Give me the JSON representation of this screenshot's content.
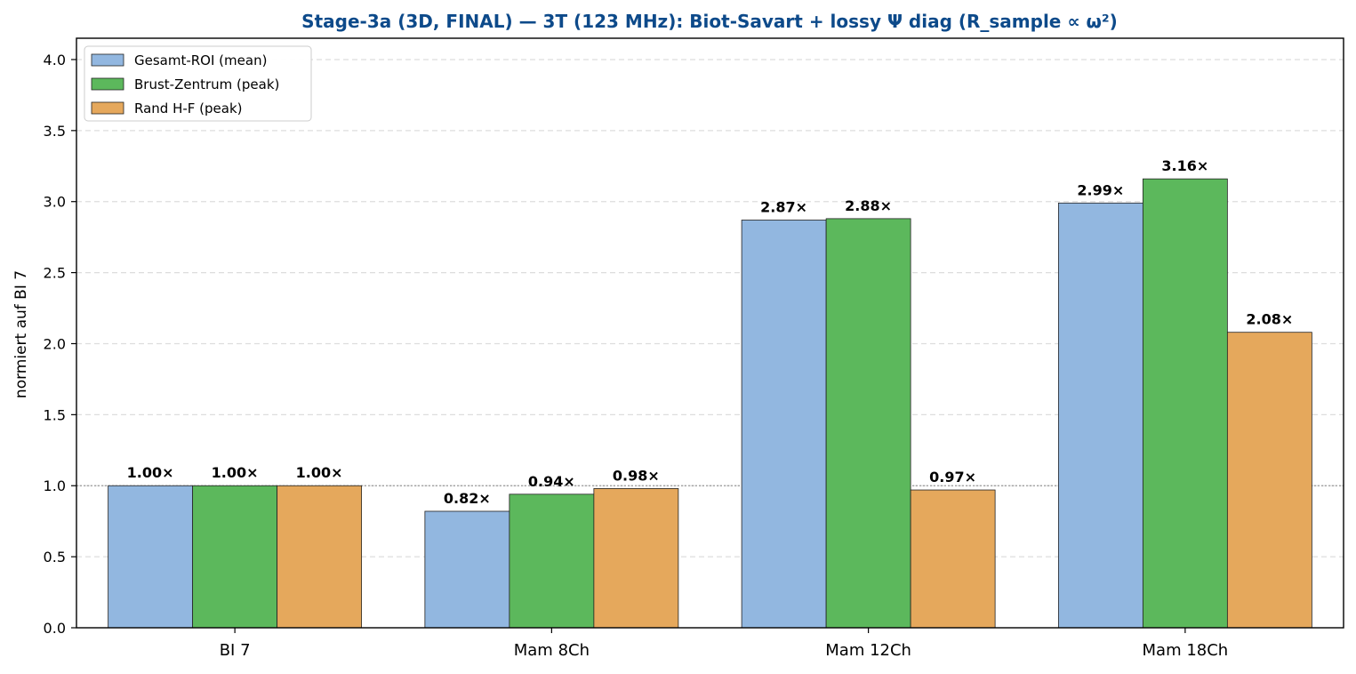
{
  "chart_data": {
    "type": "bar",
    "title": "Stage-3a (3D, FINAL) — 3T (123 MHz): Biot-Savart + lossy Ψ diag (R_sample ∝ ω²)",
    "xlabel": "",
    "ylabel": "normiert auf BI 7",
    "ylim": [
      0,
      4.15
    ],
    "yticks": [
      0.0,
      0.5,
      1.0,
      1.5,
      2.0,
      2.5,
      3.0,
      3.5,
      4.0
    ],
    "ytick_labels": [
      "0.0",
      "0.5",
      "1.0",
      "1.5",
      "2.0",
      "2.5",
      "3.0",
      "3.5",
      "4.0"
    ],
    "categories": [
      "BI 7",
      "Mam 8Ch",
      "Mam 12Ch",
      "Mam 18Ch"
    ],
    "series": [
      {
        "name": "Gesamt-ROI (mean)",
        "color": "#92b7e0",
        "values": [
          1.0,
          0.82,
          2.87,
          2.99
        ],
        "labels": [
          "1.00×",
          "0.82×",
          "2.87×",
          "2.99×"
        ]
      },
      {
        "name": "Brust-Zentrum (peak)",
        "color": "#5cb85c",
        "values": [
          1.0,
          0.94,
          2.88,
          3.16
        ],
        "labels": [
          "1.00×",
          "0.94×",
          "2.88×",
          "3.16×"
        ]
      },
      {
        "name": "Rand H-F (peak)",
        "color": "#e5a85c",
        "values": [
          1.0,
          0.98,
          0.97,
          2.08
        ],
        "labels": [
          "1.00×",
          "0.98×",
          "0.97×",
          "2.08×"
        ]
      }
    ],
    "reference_line": 1.0,
    "grid": "y-dashed",
    "legend_position": "top-left",
    "colors": {
      "title": "#0d4a8a",
      "grid": "#dddddd",
      "reference": "#999999",
      "axis": "#000000"
    }
  }
}
